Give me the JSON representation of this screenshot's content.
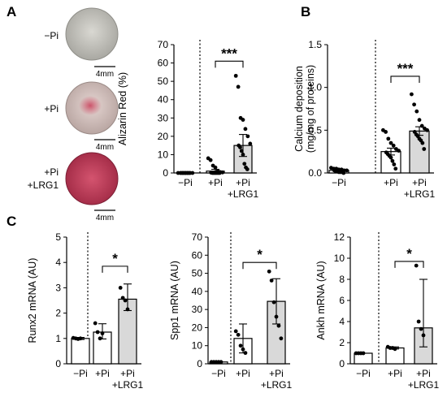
{
  "panels": {
    "a": "A",
    "b": "B",
    "c": "C"
  },
  "photos": [
    {
      "label": [
        "−Pi"
      ],
      "scale": "4mm",
      "tint": "#c4c3bd",
      "stain": "none"
    },
    {
      "label": [
        "+Pi"
      ],
      "scale": "4mm",
      "tint": "#d8c4c1",
      "stain": "#cf5a6a"
    },
    {
      "label": [
        "+Pi",
        "+LRG1"
      ],
      "scale": "4mm",
      "tint": "#c7425f",
      "stain": "#b42446"
    }
  ],
  "colors": {
    "white_bar": "#ffffff",
    "gray_bar": "#d9d9d9",
    "stain": "#c0395a"
  },
  "chart_data": [
    {
      "id": "alizarin",
      "type": "bar",
      "ylabel": "Alizarin Red (%)",
      "ylim": [
        0,
        70
      ],
      "yticks": [
        0,
        10,
        20,
        30,
        40,
        50,
        60,
        70
      ],
      "categories": [
        [
          "−Pi"
        ],
        [
          "+Pi"
        ],
        [
          "+Pi",
          "+LRG1"
        ]
      ],
      "fills": [
        "white",
        "white",
        "gray"
      ],
      "values": [
        0,
        1,
        15
      ],
      "err_low": [
        0,
        0,
        9
      ],
      "err_high": [
        0,
        2,
        21
      ],
      "points": [
        [
          0,
          0,
          0,
          0,
          0,
          0,
          0,
          0,
          0,
          0,
          0,
          0,
          0,
          0
        ],
        [
          8,
          7,
          4,
          3,
          1,
          0.5,
          0.3,
          0.2,
          0,
          0,
          0,
          0,
          0,
          0
        ],
        [
          53,
          47,
          30,
          29,
          24,
          20,
          16,
          15,
          14,
          12,
          10,
          5,
          3,
          2
        ]
      ],
      "significance": {
        "from": 1,
        "to": 2,
        "label": "***",
        "y": 61
      }
    },
    {
      "id": "calcium",
      "type": "bar",
      "ylabel": [
        "Calcium deposition",
        "(mg/mg of proteins)"
      ],
      "ylim": [
        0,
        1.5
      ],
      "yticks": [
        0.0,
        0.5,
        1.0,
        1.5
      ],
      "ytick_labels": [
        "0.0",
        "0.5",
        "1.0",
        "1.5"
      ],
      "categories": [
        [
          "−Pi"
        ],
        [
          "+Pi"
        ],
        [
          "+Pi",
          "+LRG1"
        ]
      ],
      "fills": [
        "white",
        "white",
        "gray"
      ],
      "values": [
        0.03,
        0.25,
        0.49
      ],
      "err_low": [
        0.02,
        0.21,
        0.44
      ],
      "err_high": [
        0.04,
        0.29,
        0.54
      ],
      "points": [
        [
          0.06,
          0.05,
          0.05,
          0.04,
          0.04,
          0.03,
          0.03,
          0.03,
          0.02,
          0.02,
          0.01,
          0.01,
          0.01,
          0
        ],
        [
          0.5,
          0.48,
          0.4,
          0.35,
          0.32,
          0.28,
          0.26,
          0.24,
          0.22,
          0.2,
          0.18,
          0.14,
          0.1,
          0.05
        ],
        [
          0.92,
          0.8,
          0.72,
          0.62,
          0.55,
          0.52,
          0.5,
          0.48,
          0.45,
          0.43,
          0.4,
          0.38,
          0.35,
          0.28
        ]
      ],
      "significance": {
        "from": 1,
        "to": 2,
        "label": "***",
        "y": 1.13
      }
    },
    {
      "id": "runx2",
      "type": "bar",
      "ylabel": "Runx2 mRNA (AU)",
      "ylim": [
        0,
        5
      ],
      "yticks": [
        0,
        1,
        2,
        3,
        4,
        5
      ],
      "categories": [
        [
          "−Pi"
        ],
        [
          "+Pi"
        ],
        [
          "+Pi",
          "+LRG1"
        ]
      ],
      "fills": [
        "white",
        "white",
        "gray"
      ],
      "values": [
        1.0,
        1.25,
        2.55
      ],
      "err_low": [
        0.96,
        0.98,
        2.1
      ],
      "err_high": [
        1.04,
        1.58,
        3.15
      ],
      "points": [
        [
          1.02,
          1.0,
          0.98,
          1.0
        ],
        [
          1.6,
          1.25,
          1.0,
          1.2
        ],
        [
          3.0,
          2.6,
          2.5,
          2.15
        ]
      ],
      "significance": {
        "from": 1,
        "to": 2,
        "label": "*",
        "y": 3.85
      }
    },
    {
      "id": "spp1",
      "type": "bar",
      "ylabel": "Spp1 mRNA (AU)",
      "ylim": [
        0,
        70
      ],
      "yticks": [
        0,
        10,
        20,
        30,
        40,
        50,
        60,
        70
      ],
      "categories": [
        [
          "−Pi"
        ],
        [
          "+Pi"
        ],
        [
          "+Pi",
          "+LRG1"
        ]
      ],
      "fills": [
        "white",
        "white",
        "gray"
      ],
      "values": [
        1,
        14,
        34.5
      ],
      "err_low": [
        1,
        6,
        22
      ],
      "err_high": [
        1,
        22,
        47
      ],
      "points": [
        [
          1,
          1,
          1,
          1,
          1
        ],
        [
          18,
          16,
          10,
          8,
          6
        ],
        [
          51,
          46,
          34,
          26,
          21,
          14
        ]
      ],
      "significance": {
        "from": 1,
        "to": 2,
        "label": "*",
        "y": 56
      }
    },
    {
      "id": "ankh",
      "type": "bar",
      "ylabel": "Ankh mRNA (AU)",
      "ylim": [
        0,
        12
      ],
      "yticks": [
        0,
        2,
        4,
        6,
        8,
        10,
        12
      ],
      "categories": [
        [
          "−Pi"
        ],
        [
          "+Pi"
        ],
        [
          "+Pi",
          "+LRG1"
        ]
      ],
      "fills": [
        "white",
        "white",
        "gray"
      ],
      "values": [
        1.0,
        1.5,
        3.4
      ],
      "err_low": [
        1.0,
        1.4,
        1.6
      ],
      "err_high": [
        1.0,
        1.6,
        8.0
      ],
      "points": [
        [
          1.0,
          1.0,
          1.0,
          1.0
        ],
        [
          1.6,
          1.5,
          1.5,
          1.4
        ],
        [
          9.3,
          4.0,
          3.3,
          2.7
        ]
      ],
      "significance": {
        "from": 1,
        "to": 2,
        "label": "*",
        "y": 9.7
      }
    }
  ]
}
